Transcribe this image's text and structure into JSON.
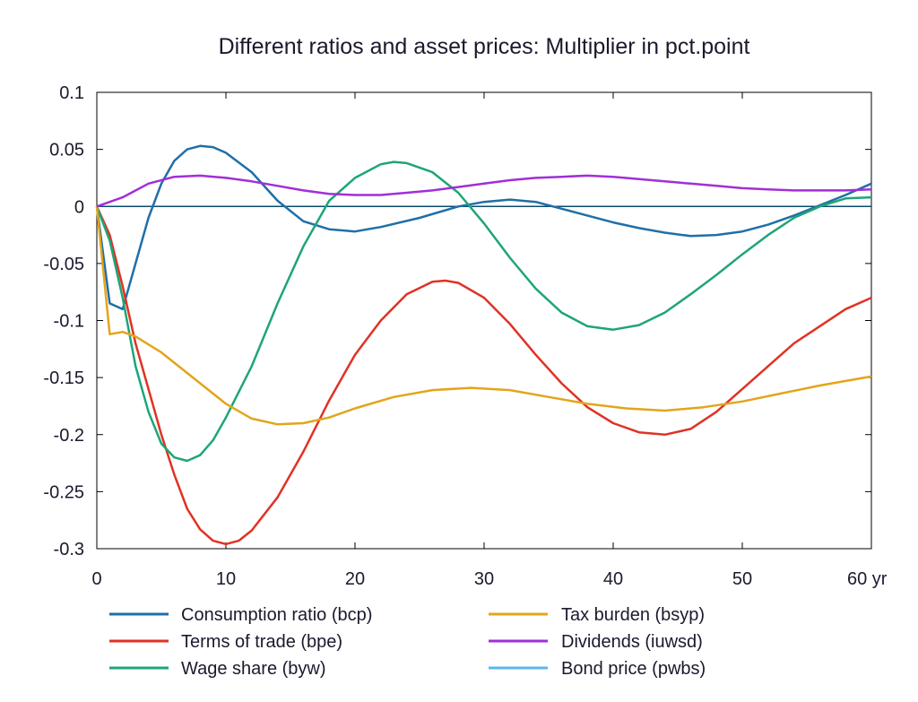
{
  "chart_data": {
    "type": "line",
    "title": "Different ratios and asset prices: Multiplier in pct.point",
    "xlabel": "",
    "ylabel": "",
    "xlim": [
      0,
      60
    ],
    "ylim": [
      -0.3,
      0.1
    ],
    "x_ticks": [
      0,
      10,
      20,
      30,
      40,
      50,
      60
    ],
    "x_tick_labels": [
      "0",
      "10",
      "20",
      "30",
      "40",
      "50",
      "60 yr"
    ],
    "y_ticks": [
      0.1,
      0.05,
      0,
      -0.05,
      -0.1,
      -0.15,
      -0.2,
      -0.25,
      -0.3
    ],
    "y_tick_labels": [
      "0.1",
      "0.05",
      "0",
      "-0.05",
      "-0.1",
      "-0.15",
      "-0.2",
      "-0.25",
      "-0.3"
    ],
    "grid": false,
    "legend_position": "bottom",
    "series": [
      {
        "name": "Consumption ratio (bcp)",
        "color": "#1f6fa8",
        "points": [
          [
            0,
            0
          ],
          [
            1,
            -0.085
          ],
          [
            2,
            -0.09
          ],
          [
            3,
            -0.05
          ],
          [
            4,
            -0.01
          ],
          [
            5,
            0.02
          ],
          [
            6,
            0.04
          ],
          [
            7,
            0.05
          ],
          [
            8,
            0.053
          ],
          [
            9,
            0.052
          ],
          [
            10,
            0.047
          ],
          [
            12,
            0.03
          ],
          [
            14,
            0.005
          ],
          [
            16,
            -0.013
          ],
          [
            18,
            -0.02
          ],
          [
            20,
            -0.022
          ],
          [
            22,
            -0.018
          ],
          [
            25,
            -0.01
          ],
          [
            28,
            0.0
          ],
          [
            30,
            0.004
          ],
          [
            32,
            0.006
          ],
          [
            34,
            0.004
          ],
          [
            36,
            -0.002
          ],
          [
            38,
            -0.008
          ],
          [
            40,
            -0.014
          ],
          [
            42,
            -0.019
          ],
          [
            44,
            -0.023
          ],
          [
            46,
            -0.026
          ],
          [
            48,
            -0.025
          ],
          [
            50,
            -0.022
          ],
          [
            52,
            -0.016
          ],
          [
            54,
            -0.008
          ],
          [
            56,
            0.001
          ],
          [
            58,
            0.01
          ],
          [
            60,
            0.02
          ]
        ]
      },
      {
        "name": "Terms of trade (bpe)",
        "color": "#e03224",
        "points": [
          [
            0,
            0
          ],
          [
            1,
            -0.025
          ],
          [
            2,
            -0.07
          ],
          [
            3,
            -0.12
          ],
          [
            4,
            -0.16
          ],
          [
            5,
            -0.2
          ],
          [
            6,
            -0.235
          ],
          [
            7,
            -0.265
          ],
          [
            8,
            -0.283
          ],
          [
            9,
            -0.293
          ],
          [
            10,
            -0.296
          ],
          [
            11,
            -0.293
          ],
          [
            12,
            -0.284
          ],
          [
            14,
            -0.255
          ],
          [
            16,
            -0.215
          ],
          [
            18,
            -0.17
          ],
          [
            20,
            -0.13
          ],
          [
            22,
            -0.1
          ],
          [
            24,
            -0.077
          ],
          [
            26,
            -0.066
          ],
          [
            27,
            -0.065
          ],
          [
            28,
            -0.067
          ],
          [
            30,
            -0.08
          ],
          [
            32,
            -0.103
          ],
          [
            34,
            -0.13
          ],
          [
            36,
            -0.155
          ],
          [
            38,
            -0.176
          ],
          [
            40,
            -0.19
          ],
          [
            42,
            -0.198
          ],
          [
            44,
            -0.2
          ],
          [
            46,
            -0.195
          ],
          [
            48,
            -0.18
          ],
          [
            50,
            -0.16
          ],
          [
            52,
            -0.14
          ],
          [
            54,
            -0.12
          ],
          [
            56,
            -0.105
          ],
          [
            58,
            -0.09
          ],
          [
            60,
            -0.08
          ]
        ]
      },
      {
        "name": "Wage share (byw)",
        "color": "#1ea578",
        "points": [
          [
            0,
            0
          ],
          [
            1,
            -0.03
          ],
          [
            2,
            -0.08
          ],
          [
            3,
            -0.14
          ],
          [
            4,
            -0.18
          ],
          [
            5,
            -0.208
          ],
          [
            6,
            -0.22
          ],
          [
            7,
            -0.223
          ],
          [
            8,
            -0.218
          ],
          [
            9,
            -0.205
          ],
          [
            10,
            -0.185
          ],
          [
            12,
            -0.14
          ],
          [
            14,
            -0.085
          ],
          [
            16,
            -0.035
          ],
          [
            18,
            0.005
          ],
          [
            20,
            0.025
          ],
          [
            22,
            0.037
          ],
          [
            23,
            0.039
          ],
          [
            24,
            0.038
          ],
          [
            26,
            0.03
          ],
          [
            28,
            0.012
          ],
          [
            30,
            -0.015
          ],
          [
            32,
            -0.045
          ],
          [
            34,
            -0.072
          ],
          [
            36,
            -0.093
          ],
          [
            38,
            -0.105
          ],
          [
            40,
            -0.108
          ],
          [
            42,
            -0.104
          ],
          [
            44,
            -0.093
          ],
          [
            46,
            -0.077
          ],
          [
            48,
            -0.06
          ],
          [
            50,
            -0.042
          ],
          [
            52,
            -0.025
          ],
          [
            54,
            -0.01
          ],
          [
            56,
            0.0
          ],
          [
            58,
            0.007
          ],
          [
            60,
            0.008
          ]
        ]
      },
      {
        "name": "Tax burden (bsyp)",
        "color": "#e3a51b",
        "points": [
          [
            0,
            0
          ],
          [
            1,
            -0.112
          ],
          [
            2,
            -0.11
          ],
          [
            3,
            -0.114
          ],
          [
            5,
            -0.128
          ],
          [
            8,
            -0.155
          ],
          [
            10,
            -0.173
          ],
          [
            12,
            -0.186
          ],
          [
            14,
            -0.191
          ],
          [
            16,
            -0.19
          ],
          [
            18,
            -0.185
          ],
          [
            20,
            -0.177
          ],
          [
            23,
            -0.167
          ],
          [
            26,
            -0.161
          ],
          [
            29,
            -0.159
          ],
          [
            32,
            -0.161
          ],
          [
            35,
            -0.167
          ],
          [
            38,
            -0.173
          ],
          [
            41,
            -0.177
          ],
          [
            44,
            -0.179
          ],
          [
            47,
            -0.176
          ],
          [
            50,
            -0.171
          ],
          [
            53,
            -0.164
          ],
          [
            56,
            -0.157
          ],
          [
            60,
            -0.149
          ]
        ]
      },
      {
        "name": "Dividends (iuwsd)",
        "color": "#a12fd8",
        "points": [
          [
            0,
            0
          ],
          [
            2,
            0.008
          ],
          [
            4,
            0.02
          ],
          [
            6,
            0.026
          ],
          [
            8,
            0.027
          ],
          [
            10,
            0.025
          ],
          [
            12,
            0.022
          ],
          [
            14,
            0.018
          ],
          [
            16,
            0.014
          ],
          [
            18,
            0.011
          ],
          [
            20,
            0.01
          ],
          [
            22,
            0.01
          ],
          [
            24,
            0.012
          ],
          [
            26,
            0.014
          ],
          [
            28,
            0.017
          ],
          [
            30,
            0.02
          ],
          [
            32,
            0.023
          ],
          [
            34,
            0.025
          ],
          [
            36,
            0.026
          ],
          [
            38,
            0.027
          ],
          [
            40,
            0.026
          ],
          [
            42,
            0.024
          ],
          [
            44,
            0.022
          ],
          [
            46,
            0.02
          ],
          [
            48,
            0.018
          ],
          [
            50,
            0.016
          ],
          [
            52,
            0.015
          ],
          [
            54,
            0.014
          ],
          [
            56,
            0.014
          ],
          [
            58,
            0.014
          ],
          [
            60,
            0.015
          ]
        ]
      },
      {
        "name": "Bond price (pwbs)",
        "color": "#5bb8ec",
        "points": []
      }
    ]
  }
}
